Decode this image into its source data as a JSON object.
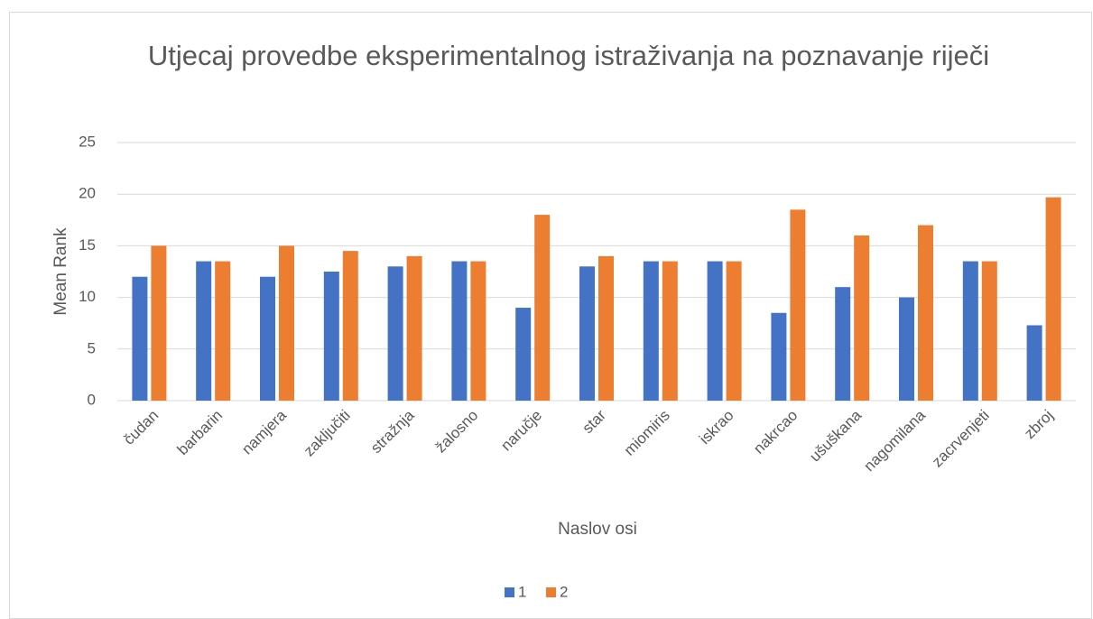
{
  "chart_data": {
    "type": "bar",
    "title": "Utjecaj provedbe eksperimentalnog istraživanja na poznavanje riječi",
    "x_label": "Naslov osi",
    "y_label": "Mean Rank",
    "categories": [
      "čudan",
      "barbarin",
      "namjera",
      "zaključiti",
      "stražnja",
      "žalosno",
      "naručje",
      "star",
      "miomiris",
      "iskrao",
      "nakrcao",
      "ušuškana",
      "nagomilana",
      "zacrvenjeti",
      "zbroj"
    ],
    "series": [
      {
        "name": "1",
        "color": "#4472c4",
        "values": [
          12,
          13.5,
          12,
          12.5,
          13,
          13.5,
          9,
          13,
          13.5,
          13.5,
          8.5,
          11,
          10,
          13.5,
          7.3
        ]
      },
      {
        "name": "2",
        "color": "#ed7d31",
        "values": [
          15,
          13.5,
          15,
          14.5,
          14,
          13.5,
          18,
          14,
          13.5,
          13.5,
          18.5,
          16,
          17,
          13.5,
          19.7
        ]
      }
    ],
    "ylim": [
      0,
      25
    ],
    "yticks": [
      0,
      5,
      10,
      15,
      20,
      25
    ],
    "grid": true,
    "legend": "bottom"
  }
}
